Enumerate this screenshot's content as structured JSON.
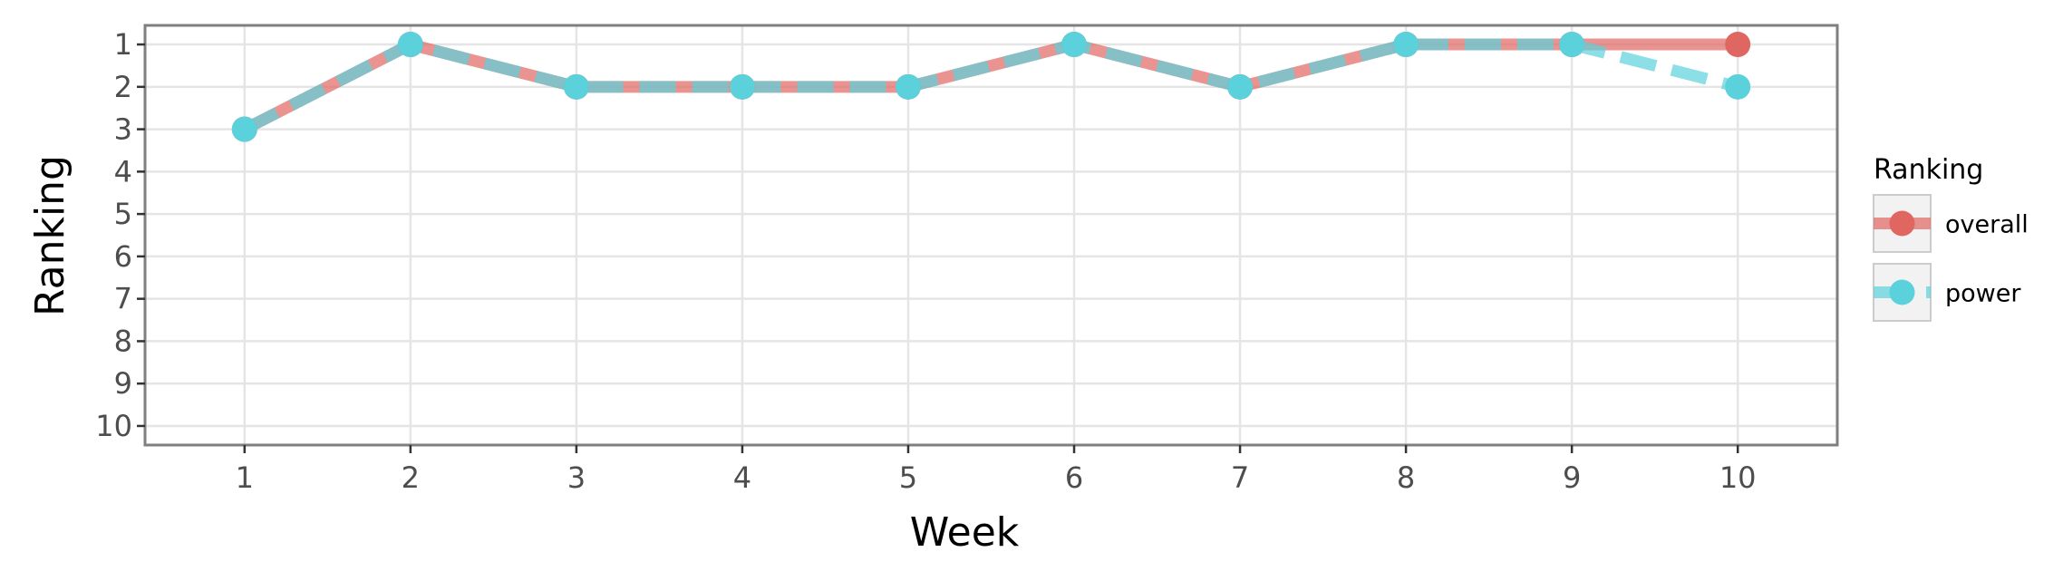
{
  "chart_data": {
    "type": "line",
    "title": "",
    "xlabel": "Week",
    "ylabel": "Ranking",
    "x": [
      1,
      2,
      3,
      4,
      5,
      6,
      7,
      8,
      9,
      10
    ],
    "x_tick_labels": [
      "1",
      "2",
      "3",
      "4",
      "5",
      "6",
      "7",
      "8",
      "9",
      "10"
    ],
    "y_tick_labels": [
      "1",
      "2",
      "3",
      "4",
      "5",
      "6",
      "7",
      "8",
      "9",
      "10"
    ],
    "xlim": [
      0.4,
      10.6
    ],
    "ylim": [
      0.55,
      10.45
    ],
    "y_reversed": true,
    "grid": true,
    "legend": {
      "title": "Ranking",
      "placement": "right"
    },
    "series": [
      {
        "name": "overall",
        "color": "#E06661",
        "line_style": "solid",
        "values": [
          3,
          1,
          2,
          2,
          2,
          1,
          2,
          1,
          1,
          1
        ]
      },
      {
        "name": "power",
        "color": "#5BD1DC",
        "line_style": "dashed",
        "values": [
          3,
          1,
          2,
          2,
          2,
          1,
          2,
          1,
          1,
          2
        ]
      }
    ]
  }
}
